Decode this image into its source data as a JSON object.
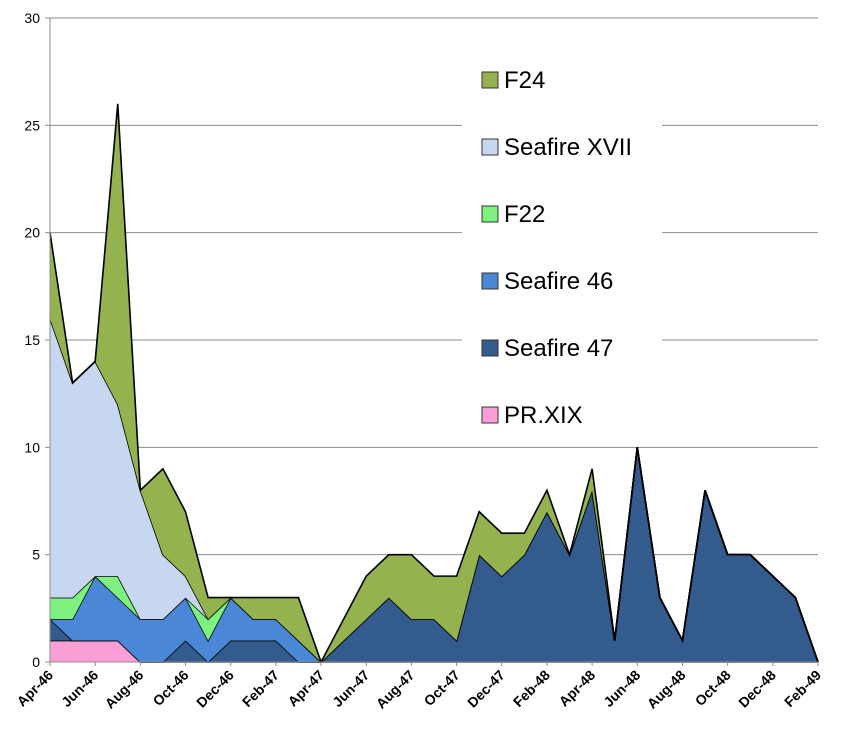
{
  "chart_data": {
    "type": "area",
    "stacked": true,
    "title": "",
    "xlabel": "",
    "ylabel": "",
    "ylim": [
      0,
      30
    ],
    "yticks": [
      0,
      5,
      10,
      15,
      20,
      25,
      30
    ],
    "grid": true,
    "legend_position": "right-upper-middle",
    "x": [
      "Apr-46",
      "May-46",
      "Jun-46",
      "Jul-46",
      "Aug-46",
      "Sep-46",
      "Oct-46",
      "Nov-46",
      "Dec-46",
      "Jan-47",
      "Feb-47",
      "Mar-47",
      "Apr-47",
      "May-47",
      "Jun-47",
      "Jul-47",
      "Aug-47",
      "Sep-47",
      "Oct-47",
      "Nov-47",
      "Dec-47",
      "Jan-48",
      "Feb-48",
      "Mar-48",
      "Apr-48",
      "May-48",
      "Jun-48",
      "Jul-48",
      "Aug-48",
      "Sep-48",
      "Oct-48",
      "Nov-48",
      "Dec-48",
      "Jan-49",
      "Feb-49"
    ],
    "x_tick_labels": [
      "Apr-46",
      "Jun-46",
      "Aug-46",
      "Oct-46",
      "Dec-46",
      "Feb-47",
      "Apr-47",
      "Jun-47",
      "Aug-47",
      "Oct-47",
      "Dec-47",
      "Feb-48",
      "Apr-48",
      "Jun-48",
      "Aug-48",
      "Oct-48",
      "Dec-48",
      "Feb-49"
    ],
    "series": [
      {
        "name": "PR.XIX",
        "color": "#f99fd6",
        "values": [
          1,
          1,
          1,
          1,
          0,
          0,
          0,
          0,
          0,
          0,
          0,
          0,
          0,
          0,
          0,
          0,
          0,
          0,
          0,
          0,
          0,
          0,
          0,
          0,
          0,
          0,
          0,
          0,
          0,
          0,
          0,
          0,
          0,
          0,
          0
        ]
      },
      {
        "name": "Seafire 47",
        "color": "#345b8d",
        "values": [
          1,
          0,
          0,
          0,
          0,
          0,
          1,
          0,
          1,
          1,
          1,
          0,
          0,
          1,
          2,
          3,
          2,
          2,
          1,
          5,
          4,
          5,
          7,
          5,
          8,
          1,
          10,
          3,
          1,
          8,
          5,
          5,
          4,
          3,
          0
        ]
      },
      {
        "name": "Seafire 46",
        "color": "#4a87d6",
        "values": [
          0,
          1,
          3,
          2,
          2,
          2,
          2,
          1,
          2,
          1,
          1,
          1,
          0,
          0,
          0,
          0,
          0,
          0,
          0,
          0,
          0,
          0,
          0,
          0,
          0,
          0,
          0,
          0,
          0,
          0,
          0,
          0,
          0,
          0,
          0
        ]
      },
      {
        "name": "F22",
        "color": "#7ef27e",
        "values": [
          1,
          1,
          0,
          1,
          0,
          0,
          0,
          1,
          0,
          0,
          0,
          0,
          0,
          0,
          0,
          0,
          0,
          0,
          0,
          0,
          0,
          0,
          0,
          0,
          0,
          0,
          0,
          0,
          0,
          0,
          0,
          0,
          0,
          0,
          0
        ]
      },
      {
        "name": "Seafire XVII",
        "color": "#c7d7ef",
        "values": [
          13,
          10,
          10,
          8,
          6,
          3,
          1,
          0,
          0,
          0,
          0,
          0,
          0,
          0,
          0,
          0,
          0,
          0,
          0,
          0,
          0,
          0,
          0,
          0,
          0,
          0,
          0,
          0,
          0,
          0,
          0,
          0,
          0,
          0,
          0
        ]
      },
      {
        "name": "F24",
        "color": "#94b24d",
        "values": [
          4,
          0,
          0,
          14,
          0,
          4,
          3,
          1,
          0,
          1,
          1,
          2,
          0,
          1,
          2,
          2,
          3,
          2,
          3,
          2,
          2,
          1,
          1,
          0,
          1,
          0,
          0,
          0,
          0,
          0,
          0,
          0,
          0,
          0,
          0
        ]
      }
    ],
    "legend_order": [
      "F24",
      "Seafire XVII",
      "F22",
      "Seafire 46",
      "Seafire 47",
      "PR.XIX"
    ]
  }
}
